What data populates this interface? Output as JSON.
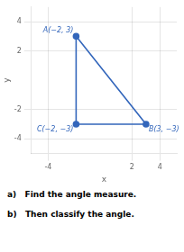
{
  "chart_data": {
    "type": "scatter",
    "x": [
      -2,
      -2,
      3
    ],
    "values": [
      3,
      -3,
      -3
    ],
    "value_labels": [
      "A(−2, 3)",
      "C(−2, −3)",
      "B(3, −3)"
    ],
    "data_labels": true,
    "color": "#3366bb",
    "marker": "circle",
    "line_style": "solid",
    "xlabel": "x",
    "ylabel": "y",
    "xlim": [
      -5.2,
      5.2
    ],
    "ylim": [
      -5.0,
      5.0
    ],
    "xticks": [
      -4,
      2,
      4
    ],
    "yticks": [
      4,
      2,
      -2,
      -4
    ],
    "grid": true,
    "annotations": [
      "a)   Find the angle measure.",
      "b)   Then classify the angle."
    ]
  }
}
